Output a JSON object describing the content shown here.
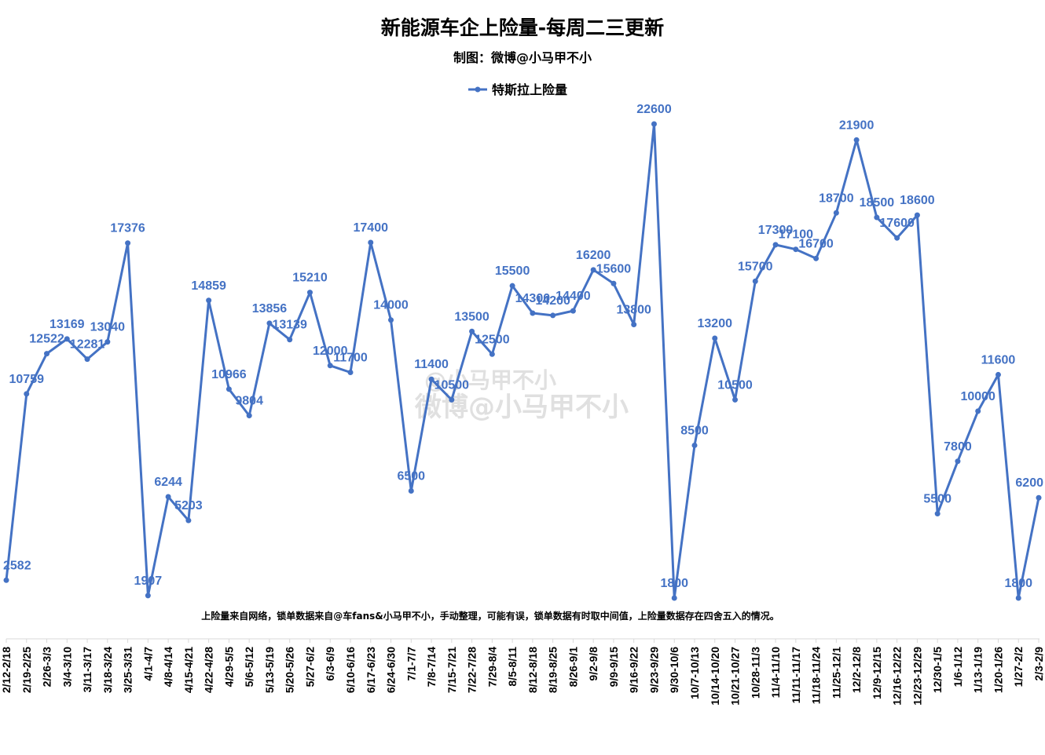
{
  "colors": {
    "series": "#4472c4",
    "axis": "#d9d9d9",
    "text": "#000000",
    "watermark": "#c8c8c8"
  },
  "watermark": {
    "line1": "@小马甲不小",
    "line2": "微博@小马甲不小"
  },
  "chart_data": {
    "type": "line",
    "title": "新能源车企上险量-每周二三更新",
    "subtitle": "制图：微博@小马甲不小",
    "note": "上险量来自网络，锁单数据来自@车fans&小马甲不小，手动整理，可能有误，锁单数据有时取中间值，上险量数据存在四舍五入的情况。",
    "legend_position": "top-center",
    "grid": false,
    "ylim": [
      0,
      27000
    ],
    "categories": [
      "2/12-2/18",
      "2/19-2/25",
      "2/26-3/3",
      "3/4-3/10",
      "3/11-3/17",
      "3/18-3/24",
      "3/25-3/31",
      "4/1-4/7",
      "4/8-4/14",
      "4/15-4/21",
      "4/22-4/28",
      "4/29-5/5",
      "5/6-5/12",
      "5/13-5/19",
      "5/20-5/26",
      "5/27-6/2",
      "6/3-6/9",
      "6/10-6/16",
      "6/17-6/23",
      "6/24-6/30",
      "7/1-7/7",
      "7/8-7/14",
      "7/15-7/21",
      "7/22-7/28",
      "7/29-8/4",
      "8/5-8/11",
      "8/12-8/18",
      "8/19-8/25",
      "8/26-9/1",
      "9/2-9/8",
      "9/9-9/15",
      "9/16-9/22",
      "9/23-9/29",
      "9/30-10/6",
      "10/7-10/13",
      "10/14-10/20",
      "10/21-10/27",
      "10/28-11/3",
      "11/4-11/10",
      "11/11-11/17",
      "11/18-11/24",
      "11/25-12/1",
      "12/2-12/8",
      "12/9-12/15",
      "12/16-12/22",
      "12/23-12/29",
      "12/30-1/5",
      "1/6-1/12",
      "1/13-1/19",
      "1/20-1/26",
      "1/27-2/2",
      "2/3-2/9"
    ],
    "series": [
      {
        "name": "特斯拉上险量",
        "values": [
          2582,
          10759,
          12522,
          13169,
          12281,
          13040,
          17376,
          1907,
          6244,
          5203,
          14859,
          10966,
          9804,
          13856,
          13139,
          15210,
          12000,
          11700,
          17400,
          14000,
          6500,
          11400,
          10500,
          13500,
          12500,
          15500,
          14300,
          14200,
          14400,
          16200,
          15600,
          13800,
          22600,
          1800,
          8500,
          13200,
          10500,
          15700,
          17300,
          17100,
          16700,
          18700,
          21900,
          18500,
          17600,
          18600,
          5500,
          7800,
          10000,
          11600,
          1800,
          6200
        ]
      }
    ]
  }
}
